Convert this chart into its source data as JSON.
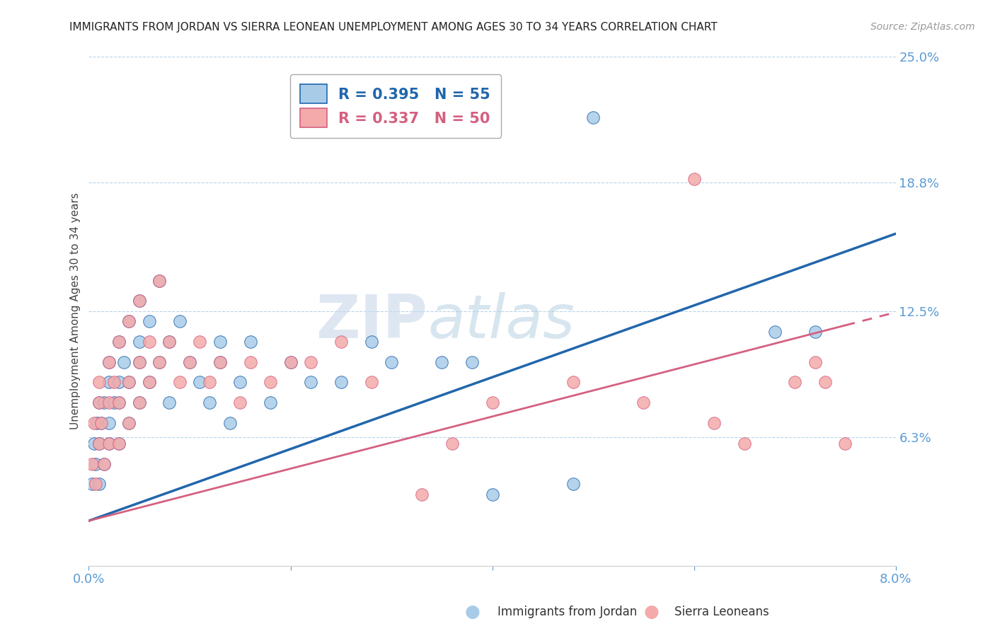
{
  "title": "IMMIGRANTS FROM JORDAN VS SIERRA LEONEAN UNEMPLOYMENT AMONG AGES 30 TO 34 YEARS CORRELATION CHART",
  "source": "Source: ZipAtlas.com",
  "ylabel": "Unemployment Among Ages 30 to 34 years",
  "legend1_label": "Immigrants from Jordan",
  "legend2_label": "Sierra Leoneans",
  "r1": 0.395,
  "n1": 55,
  "r2": 0.337,
  "n2": 50,
  "color1": "#a8cce8",
  "color2": "#f4aaaa",
  "trendline1_color": "#2166ac",
  "trendline2_color": "#d46080",
  "xmin": 0.0,
  "xmax": 0.08,
  "ymin": 0.0,
  "ymax": 0.25,
  "yticks": [
    0.0,
    0.063,
    0.125,
    0.188,
    0.25
  ],
  "ytick_labels": [
    "",
    "6.3%",
    "12.5%",
    "18.8%",
    "25.0%"
  ],
  "xticks": [
    0.0,
    0.02,
    0.04,
    0.06,
    0.08
  ],
  "xtick_labels": [
    "0.0%",
    "",
    "",
    "",
    "8.0%"
  ],
  "watermark_ZIP": "ZIP",
  "watermark_atlas": "atlas",
  "background_color": "#ffffff",
  "trendline1_x0": 0.0,
  "trendline1_y0": 0.022,
  "trendline1_x1": 0.08,
  "trendline1_y1": 0.163,
  "trendline2_x0": 0.0,
  "trendline2_y0": 0.022,
  "trendline2_x1": 0.075,
  "trendline2_y1": 0.118,
  "scatter1_x": [
    0.0003,
    0.0005,
    0.0007,
    0.0008,
    0.001,
    0.001,
    0.001,
    0.0012,
    0.0015,
    0.0015,
    0.002,
    0.002,
    0.002,
    0.002,
    0.0025,
    0.003,
    0.003,
    0.003,
    0.003,
    0.0035,
    0.004,
    0.004,
    0.004,
    0.005,
    0.005,
    0.005,
    0.005,
    0.006,
    0.006,
    0.007,
    0.007,
    0.008,
    0.008,
    0.009,
    0.01,
    0.011,
    0.012,
    0.013,
    0.014,
    0.015,
    0.018,
    0.02,
    0.025,
    0.028,
    0.03,
    0.038,
    0.04,
    0.048,
    0.068,
    0.072,
    0.013,
    0.016,
    0.022,
    0.035,
    0.05
  ],
  "scatter1_y": [
    0.04,
    0.06,
    0.05,
    0.07,
    0.06,
    0.08,
    0.04,
    0.07,
    0.05,
    0.08,
    0.07,
    0.09,
    0.06,
    0.1,
    0.08,
    0.09,
    0.11,
    0.08,
    0.06,
    0.1,
    0.12,
    0.09,
    0.07,
    0.13,
    0.1,
    0.08,
    0.11,
    0.12,
    0.09,
    0.14,
    0.1,
    0.11,
    0.08,
    0.12,
    0.1,
    0.09,
    0.08,
    0.11,
    0.07,
    0.09,
    0.08,
    0.1,
    0.09,
    0.11,
    0.1,
    0.1,
    0.035,
    0.04,
    0.115,
    0.115,
    0.1,
    0.11,
    0.09,
    0.1,
    0.22
  ],
  "scatter2_x": [
    0.0003,
    0.0005,
    0.0007,
    0.001,
    0.001,
    0.001,
    0.0012,
    0.0015,
    0.002,
    0.002,
    0.002,
    0.0025,
    0.003,
    0.003,
    0.003,
    0.004,
    0.004,
    0.004,
    0.005,
    0.005,
    0.005,
    0.006,
    0.006,
    0.007,
    0.007,
    0.008,
    0.009,
    0.01,
    0.011,
    0.012,
    0.013,
    0.015,
    0.016,
    0.018,
    0.02,
    0.022,
    0.025,
    0.028,
    0.033,
    0.036,
    0.04,
    0.048,
    0.055,
    0.06,
    0.062,
    0.065,
    0.07,
    0.072,
    0.073,
    0.075
  ],
  "scatter2_y": [
    0.05,
    0.07,
    0.04,
    0.08,
    0.06,
    0.09,
    0.07,
    0.05,
    0.1,
    0.08,
    0.06,
    0.09,
    0.11,
    0.08,
    0.06,
    0.12,
    0.09,
    0.07,
    0.13,
    0.1,
    0.08,
    0.11,
    0.09,
    0.14,
    0.1,
    0.11,
    0.09,
    0.1,
    0.11,
    0.09,
    0.1,
    0.08,
    0.1,
    0.09,
    0.1,
    0.1,
    0.11,
    0.09,
    0.035,
    0.06,
    0.08,
    0.09,
    0.08,
    0.19,
    0.07,
    0.06,
    0.09,
    0.1,
    0.09,
    0.06
  ]
}
